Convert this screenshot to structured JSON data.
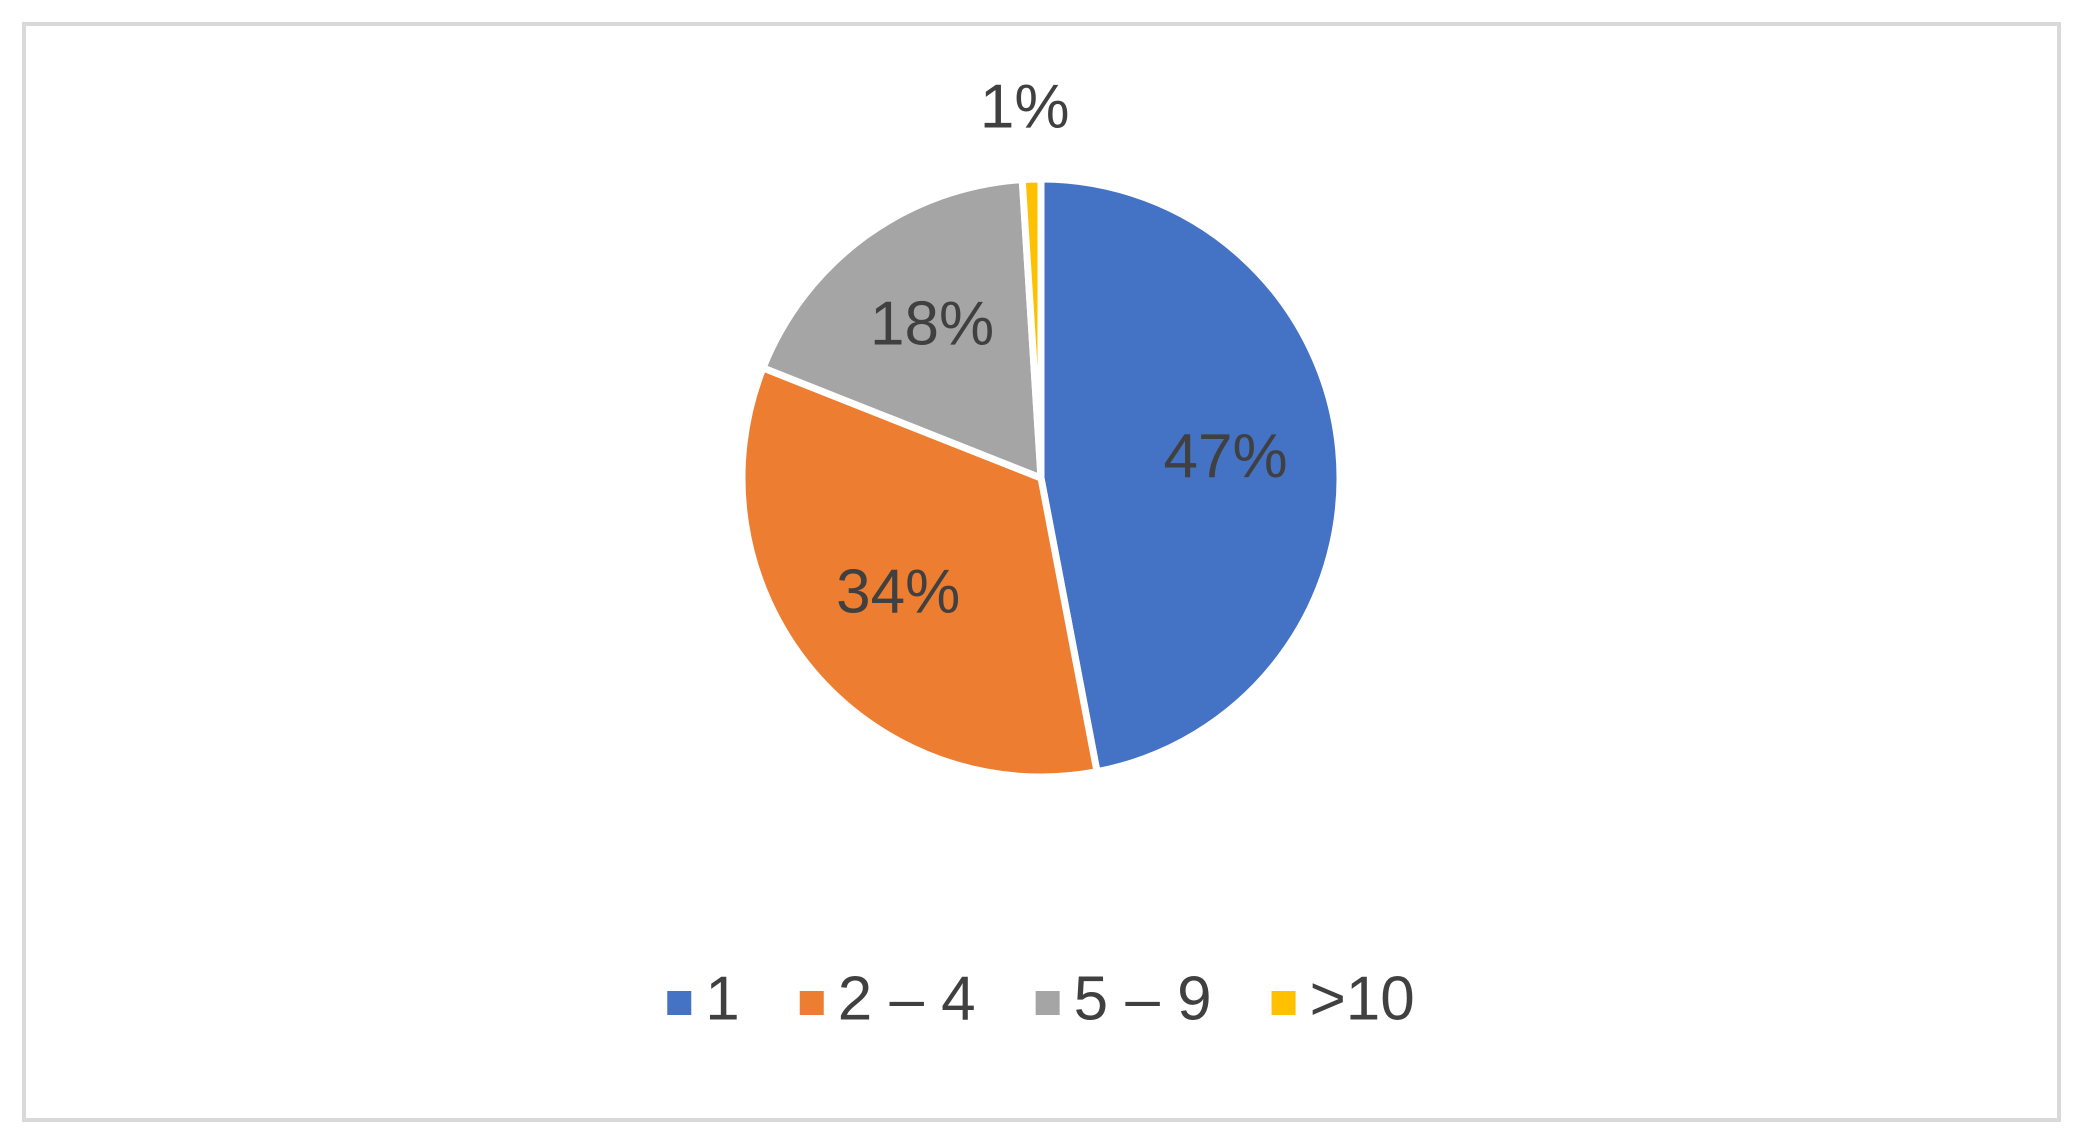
{
  "chart_data": {
    "type": "pie",
    "categories": [
      "1",
      "2 – 4",
      "5 – 9",
      ">10"
    ],
    "values": [
      47,
      34,
      18,
      1
    ],
    "value_labels": [
      "47%",
      "34%",
      "18%",
      "1%"
    ],
    "colors": [
      "#4472c4",
      "#ed7d31",
      "#a5a5a5",
      "#ffc000"
    ],
    "legend": "bottom"
  }
}
